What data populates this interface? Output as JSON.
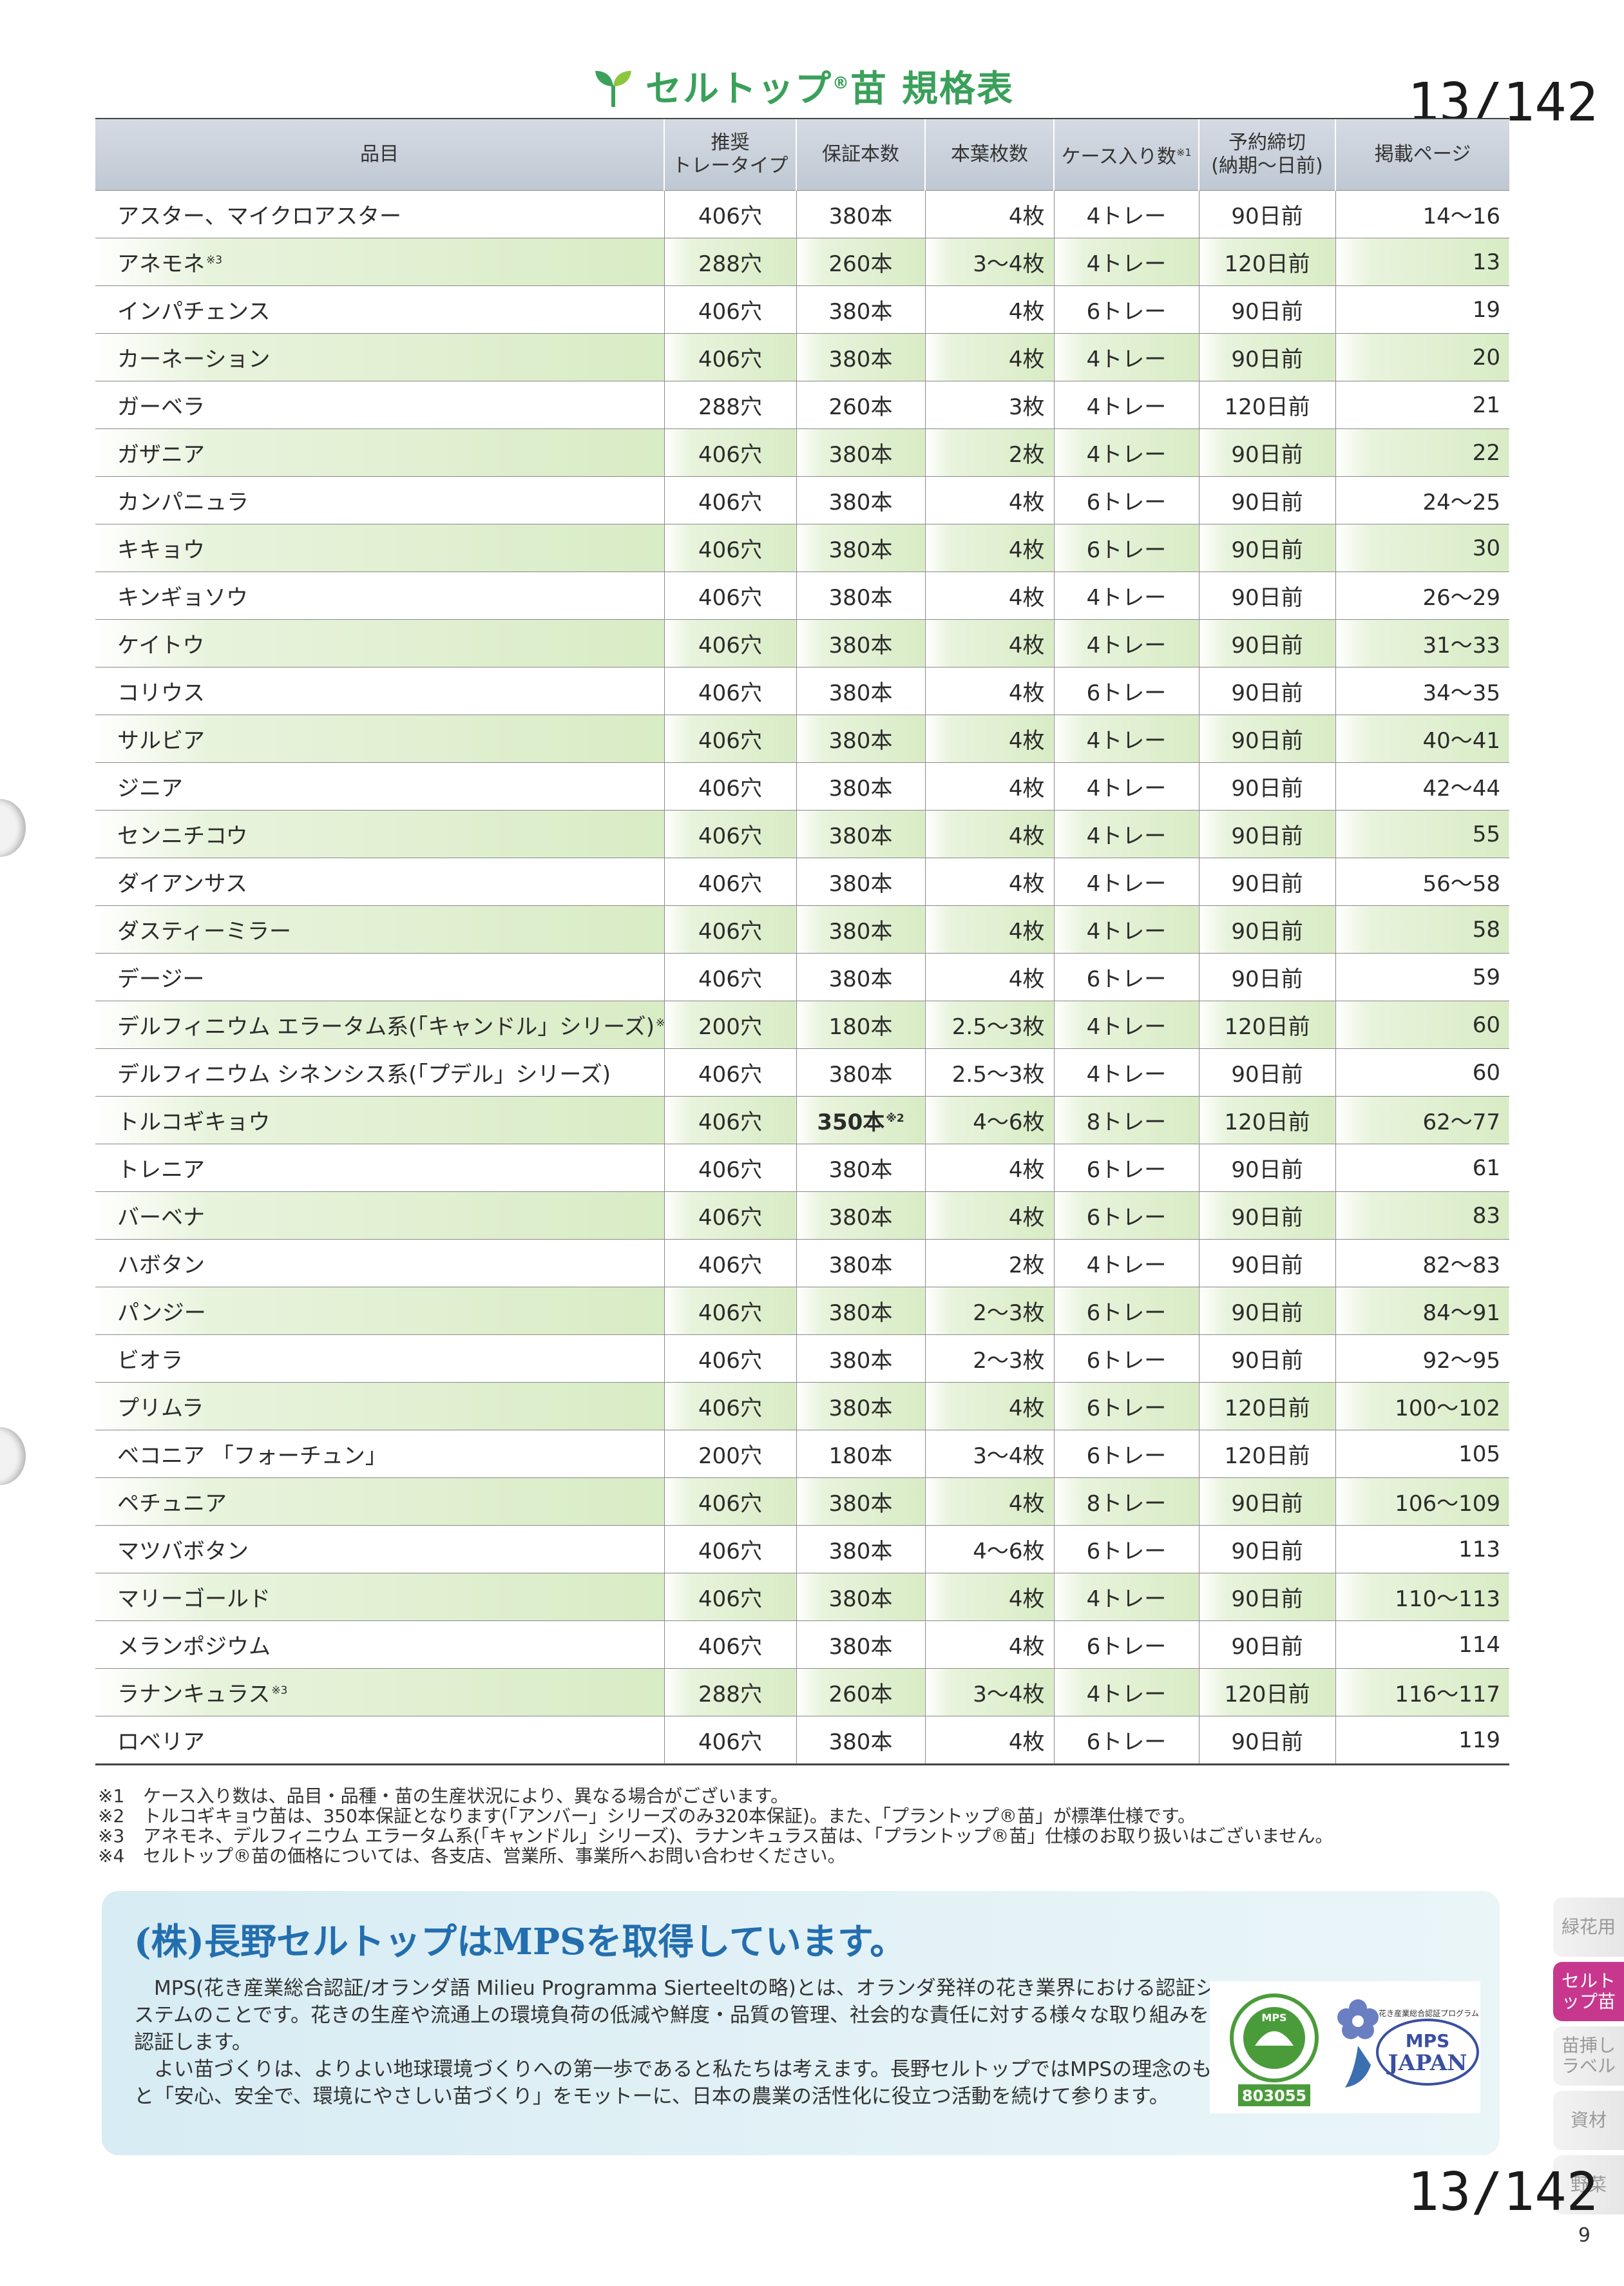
{
  "header": {
    "title": "セルトップ",
    "title_reg": "®",
    "title_suffix": "苗",
    "title_spec": "規格表"
  },
  "page_number": "13/142",
  "folio": "9",
  "table": {
    "headers": {
      "item": "品目",
      "tray": "推奨\nトレータイプ",
      "guarantee": "保証本数",
      "leaves": "本葉枚数",
      "case": "ケース入り数",
      "case_note": "※1",
      "deadline": "予約締切\n(納期〜日前)",
      "page": "掲載ページ"
    },
    "rows": [
      {
        "name": "アスター、マイクロアスター",
        "note": "",
        "tray": "406穴",
        "guarantee": "380本",
        "leaves": "4枚",
        "case": "4トレー",
        "deadline": "90日前",
        "page": "14〜16"
      },
      {
        "name": "アネモネ",
        "note": "※3",
        "tray": "288穴",
        "guarantee": "260本",
        "leaves": "3〜4枚",
        "case": "4トレー",
        "deadline": "120日前",
        "page": "13"
      },
      {
        "name": "インパチェンス",
        "note": "",
        "tray": "406穴",
        "guarantee": "380本",
        "leaves": "4枚",
        "case": "6トレー",
        "deadline": "90日前",
        "page": "19"
      },
      {
        "name": "カーネーション",
        "note": "",
        "tray": "406穴",
        "guarantee": "380本",
        "leaves": "4枚",
        "case": "4トレー",
        "deadline": "90日前",
        "page": "20"
      },
      {
        "name": "ガーベラ",
        "note": "",
        "tray": "288穴",
        "guarantee": "260本",
        "leaves": "3枚",
        "case": "4トレー",
        "deadline": "120日前",
        "page": "21"
      },
      {
        "name": "ガザニア",
        "note": "",
        "tray": "406穴",
        "guarantee": "380本",
        "leaves": "2枚",
        "case": "4トレー",
        "deadline": "90日前",
        "page": "22"
      },
      {
        "name": "カンパニュラ",
        "note": "",
        "tray": "406穴",
        "guarantee": "380本",
        "leaves": "4枚",
        "case": "6トレー",
        "deadline": "90日前",
        "page": "24〜25"
      },
      {
        "name": "キキョウ",
        "note": "",
        "tray": "406穴",
        "guarantee": "380本",
        "leaves": "4枚",
        "case": "6トレー",
        "deadline": "90日前",
        "page": "30"
      },
      {
        "name": "キンギョソウ",
        "note": "",
        "tray": "406穴",
        "guarantee": "380本",
        "leaves": "4枚",
        "case": "4トレー",
        "deadline": "90日前",
        "page": "26〜29"
      },
      {
        "name": "ケイトウ",
        "note": "",
        "tray": "406穴",
        "guarantee": "380本",
        "leaves": "4枚",
        "case": "4トレー",
        "deadline": "90日前",
        "page": "31〜33"
      },
      {
        "name": "コリウス",
        "note": "",
        "tray": "406穴",
        "guarantee": "380本",
        "leaves": "4枚",
        "case": "6トレー",
        "deadline": "90日前",
        "page": "34〜35"
      },
      {
        "name": "サルビア",
        "note": "",
        "tray": "406穴",
        "guarantee": "380本",
        "leaves": "4枚",
        "case": "4トレー",
        "deadline": "90日前",
        "page": "40〜41"
      },
      {
        "name": "ジニア",
        "note": "",
        "tray": "406穴",
        "guarantee": "380本",
        "leaves": "4枚",
        "case": "4トレー",
        "deadline": "90日前",
        "page": "42〜44"
      },
      {
        "name": "センニチコウ",
        "note": "",
        "tray": "406穴",
        "guarantee": "380本",
        "leaves": "4枚",
        "case": "4トレー",
        "deadline": "90日前",
        "page": "55"
      },
      {
        "name": "ダイアンサス",
        "note": "",
        "tray": "406穴",
        "guarantee": "380本",
        "leaves": "4枚",
        "case": "4トレー",
        "deadline": "90日前",
        "page": "56〜58"
      },
      {
        "name": "ダスティーミラー",
        "note": "",
        "tray": "406穴",
        "guarantee": "380本",
        "leaves": "4枚",
        "case": "4トレー",
        "deadline": "90日前",
        "page": "58"
      },
      {
        "name": "デージー",
        "note": "",
        "tray": "406穴",
        "guarantee": "380本",
        "leaves": "4枚",
        "case": "6トレー",
        "deadline": "90日前",
        "page": "59"
      },
      {
        "name": "デルフィニウム エラータム系(「キャンドル」シリーズ)",
        "note": "※3",
        "tray": "200穴",
        "guarantee": "180本",
        "leaves": "2.5〜3枚",
        "case": "4トレー",
        "deadline": "120日前",
        "page": "60"
      },
      {
        "name": "デルフィニウム シネンシス系(「プデル」シリーズ)",
        "note": "",
        "tray": "406穴",
        "guarantee": "380本",
        "leaves": "2.5〜3枚",
        "case": "4トレー",
        "deadline": "90日前",
        "page": "60"
      },
      {
        "name": "トルコギキョウ",
        "note": "",
        "tray": "406穴",
        "guarantee": "350本",
        "guarantee_note": "※2",
        "guarantee_bold": true,
        "leaves": "4〜6枚",
        "case": "8トレー",
        "deadline": "120日前",
        "page": "62〜77"
      },
      {
        "name": "トレニア",
        "note": "",
        "tray": "406穴",
        "guarantee": "380本",
        "leaves": "4枚",
        "case": "6トレー",
        "deadline": "90日前",
        "page": "61"
      },
      {
        "name": "バーベナ",
        "note": "",
        "tray": "406穴",
        "guarantee": "380本",
        "leaves": "4枚",
        "case": "6トレー",
        "deadline": "90日前",
        "page": "83"
      },
      {
        "name": "ハボタン",
        "note": "",
        "tray": "406穴",
        "guarantee": "380本",
        "leaves": "2枚",
        "case": "4トレー",
        "deadline": "90日前",
        "page": "82〜83"
      },
      {
        "name": "パンジー",
        "note": "",
        "tray": "406穴",
        "guarantee": "380本",
        "leaves": "2〜3枚",
        "case": "6トレー",
        "deadline": "90日前",
        "page": "84〜91"
      },
      {
        "name": "ビオラ",
        "note": "",
        "tray": "406穴",
        "guarantee": "380本",
        "leaves": "2〜3枚",
        "case": "6トレー",
        "deadline": "90日前",
        "page": "92〜95"
      },
      {
        "name": "プリムラ",
        "note": "",
        "tray": "406穴",
        "guarantee": "380本",
        "leaves": "4枚",
        "case": "6トレー",
        "deadline": "120日前",
        "page": "100〜102"
      },
      {
        "name": "ベコニア 「フォーチュン」",
        "note": "",
        "tray": "200穴",
        "guarantee": "180本",
        "leaves": "3〜4枚",
        "case": "6トレー",
        "deadline": "120日前",
        "page": "105"
      },
      {
        "name": "ペチュニア",
        "note": "",
        "tray": "406穴",
        "guarantee": "380本",
        "leaves": "4枚",
        "case": "8トレー",
        "deadline": "90日前",
        "page": "106〜109"
      },
      {
        "name": "マツバボタン",
        "note": "",
        "tray": "406穴",
        "guarantee": "380本",
        "leaves": "4〜6枚",
        "case": "6トレー",
        "deadline": "90日前",
        "page": "113"
      },
      {
        "name": "マリーゴールド",
        "note": "",
        "tray": "406穴",
        "guarantee": "380本",
        "leaves": "4枚",
        "case": "4トレー",
        "deadline": "90日前",
        "page": "110〜113"
      },
      {
        "name": "メランポジウム",
        "note": "",
        "tray": "406穴",
        "guarantee": "380本",
        "leaves": "4枚",
        "case": "6トレー",
        "deadline": "90日前",
        "page": "114"
      },
      {
        "name": "ラナンキュラス",
        "note": "※3",
        "tray": "288穴",
        "guarantee": "260本",
        "leaves": "3〜4枚",
        "case": "4トレー",
        "deadline": "120日前",
        "page": "116〜117"
      },
      {
        "name": "ロベリア",
        "note": "",
        "tray": "406穴",
        "guarantee": "380本",
        "leaves": "4枚",
        "case": "6トレー",
        "deadline": "90日前",
        "page": "119"
      }
    ]
  },
  "footnotes": [
    {
      "mark": "※1",
      "text": "ケース入り数は、品目・品種・苗の生産状況により、異なる場合がございます。"
    },
    {
      "mark": "※2",
      "text": "トルコギキョウ苗は、350本保証となります(「アンバー」シリーズのみ320本保証)。また、「プラントップ®苗」が標準仕様です。"
    },
    {
      "mark": "※3",
      "text": "アネモネ、デルフィニウム エラータム系(「キャンドル」シリーズ)、ラナンキュラス苗は、「プラントップ®苗」仕様のお取り扱いはございません。"
    },
    {
      "mark": "※4",
      "text": "セルトップ®苗の価格については、各支店、営業所、事業所へお問い合わせください。"
    }
  ],
  "mps": {
    "heading": "(株)長野セルトップはMPSを取得しています。",
    "paragraph1": "MPS(花き産業総合認証/オランダ語 Milieu Programma Sierteeltの略)とは、オランダ発祥の花き業界における認証システムのことです。花きの生産や流通上の環境負荷の低減や鮮度・品質の管理、社会的な責任に対する様々な取り組みを認証します。",
    "paragraph2": "よい苗づくりは、よりよい地球環境づくりへの第一歩であると私たちは考えます。長野セルトップではMPSの理念のもと「安心、安全で、環境にやさしい苗づくり」をモットーに、日本の農業の活性化に役立つ活動を続けて参ります。",
    "logo1_top": "MPS",
    "logo1_code": "803055",
    "logo2_caption": "花き産業総合認証プログラム",
    "logo2_text": "MPS",
    "logo2_sub": "JAPAN"
  },
  "side_tabs": [
    {
      "label": "緑花用",
      "active": false
    },
    {
      "label": "セルトップ苗",
      "active": true
    },
    {
      "label": "苗挿し ラベル",
      "active": false
    },
    {
      "label": "資材",
      "active": false
    },
    {
      "label": "野菜",
      "active": false
    }
  ],
  "colors": {
    "title_green": "#3aa05a",
    "heading_blue": "#236eae",
    "tab_active": "#c8378e",
    "row_green": "#d8ecc5"
  }
}
